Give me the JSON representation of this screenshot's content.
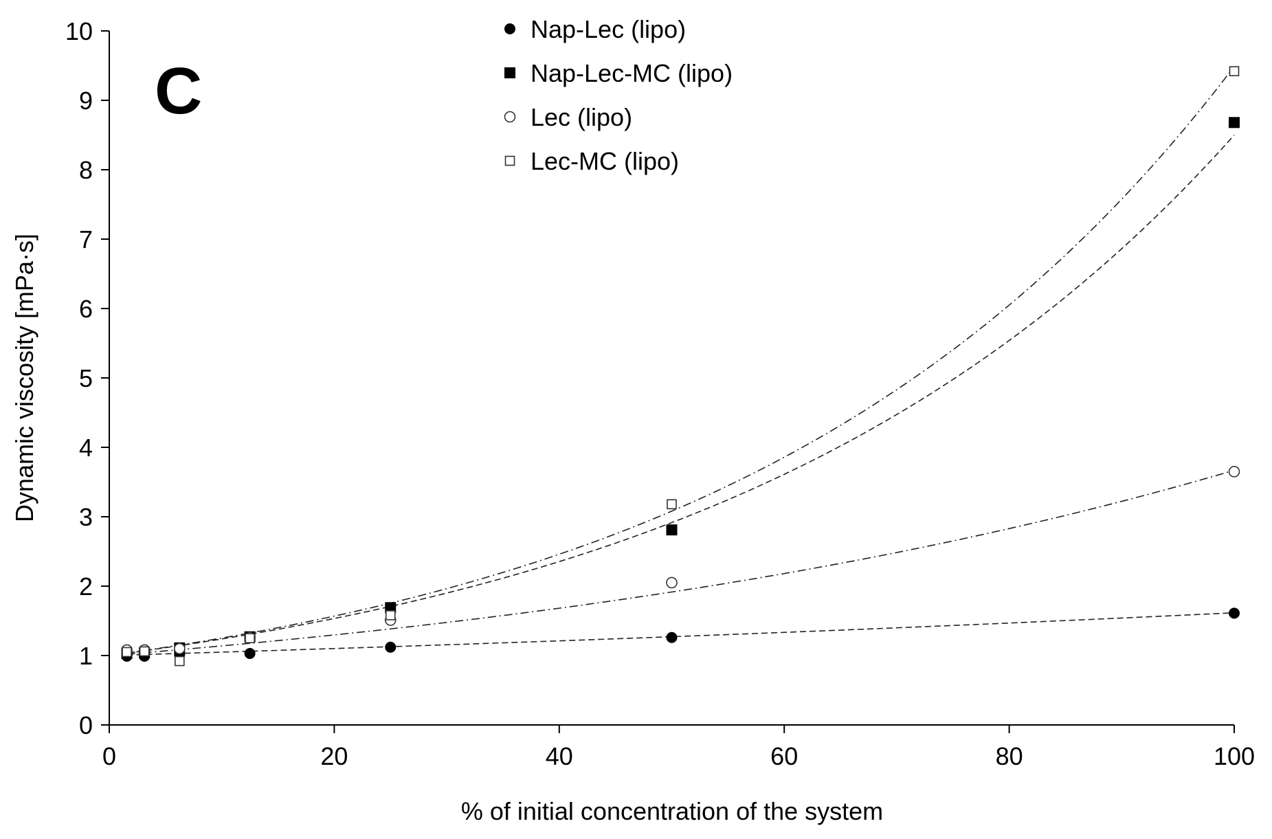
{
  "chart_data": {
    "type": "scatter",
    "panel_label": "C",
    "xlabel": "% of initial concentration of the system",
    "ylabel": "Dynamic viscosity [mPa·s]",
    "xlim": [
      0,
      100
    ],
    "ylim": [
      0,
      10
    ],
    "xticks": [
      0,
      20,
      40,
      60,
      80,
      100
    ],
    "yticks": [
      0,
      1,
      2,
      3,
      4,
      5,
      6,
      7,
      8,
      9,
      10
    ],
    "grid": false,
    "legend_position": "top-center",
    "series": [
      {
        "name": "Nap-Lec (lipo)",
        "marker": "filled-circle",
        "trendline": "dashed",
        "x": [
          1.5625,
          3.125,
          6.25,
          12.5,
          25,
          50,
          100
        ],
        "y": [
          0.99,
          0.99,
          1.01,
          1.03,
          1.12,
          1.26,
          1.61
        ],
        "fit": {
          "a": 1.0,
          "b": 0.0048
        }
      },
      {
        "name": "Nap-Lec-MC (lipo)",
        "marker": "filled-square",
        "trendline": "dashed",
        "x": [
          1.5625,
          3.125,
          6.25,
          12.5,
          25,
          50,
          100
        ],
        "y": [
          1.03,
          1.04,
          1.11,
          1.27,
          1.69,
          2.81,
          8.68
        ],
        "fit": {
          "a": 1.0,
          "b": 0.0214
        }
      },
      {
        "name": "Lec (lipo)",
        "marker": "open-circle",
        "trendline": "dash-dot",
        "x": [
          1.5625,
          3.125,
          6.25,
          12.5,
          25,
          50,
          100
        ],
        "y": [
          1.08,
          1.08,
          1.1,
          1.26,
          1.51,
          2.05,
          3.65
        ],
        "fit": {
          "a": 1.0,
          "b": 0.013
        }
      },
      {
        "name": "Lec-MC (lipo)",
        "marker": "open-square",
        "trendline": "dash-dot",
        "x": [
          1.5625,
          3.125,
          6.25,
          12.5,
          25,
          50,
          100
        ],
        "y": [
          1.05,
          1.06,
          0.92,
          1.25,
          1.58,
          3.18,
          9.42
        ],
        "fit": {
          "a": 1.0,
          "b": 0.0225
        }
      }
    ]
  }
}
